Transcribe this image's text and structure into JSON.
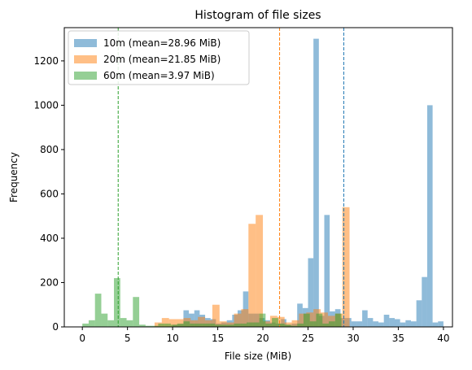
{
  "chart_data": {
    "type": "histogram",
    "title": "Histogram of file sizes",
    "xlabel": "File size (MiB)",
    "ylabel": "Frequency",
    "xlim": [
      -2,
      41
    ],
    "ylim": [
      0,
      1350
    ],
    "xticks": [
      0,
      5,
      10,
      15,
      20,
      25,
      30,
      35,
      40
    ],
    "yticks": [
      0,
      200,
      400,
      600,
      800,
      1000,
      1200
    ],
    "legend_position": "top-left",
    "grid": false,
    "series": [
      {
        "name": "10m (mean=28.96 MiB)",
        "color": "#1f77b4",
        "mean": 28.96,
        "bins": [
          [
            10.0,
            10.6,
            10
          ],
          [
            10.6,
            11.2,
            12
          ],
          [
            11.2,
            11.8,
            75
          ],
          [
            11.8,
            12.4,
            60
          ],
          [
            12.4,
            13.0,
            75
          ],
          [
            13.0,
            13.6,
            55
          ],
          [
            13.6,
            14.2,
            40
          ],
          [
            14.2,
            14.8,
            35
          ],
          [
            14.8,
            15.4,
            15
          ],
          [
            15.4,
            16.0,
            20
          ],
          [
            16.0,
            16.6,
            30
          ],
          [
            16.6,
            17.2,
            55
          ],
          [
            17.2,
            17.8,
            75
          ],
          [
            17.8,
            18.4,
            160
          ],
          [
            18.4,
            19.0,
            60
          ],
          [
            19.0,
            19.6,
            60
          ],
          [
            19.6,
            20.2,
            40
          ],
          [
            20.2,
            20.8,
            30
          ],
          [
            20.8,
            21.4,
            20
          ],
          [
            21.4,
            22.0,
            15
          ],
          [
            22.0,
            22.6,
            35
          ],
          [
            22.6,
            23.2,
            10
          ],
          [
            23.2,
            23.8,
            15
          ],
          [
            23.8,
            24.4,
            105
          ],
          [
            24.4,
            25.0,
            85
          ],
          [
            25.0,
            25.6,
            310
          ],
          [
            25.6,
            26.2,
            1300
          ],
          [
            26.2,
            26.8,
            50
          ],
          [
            26.8,
            27.4,
            505
          ],
          [
            27.4,
            28.0,
            70
          ],
          [
            28.0,
            28.6,
            80
          ],
          [
            28.6,
            29.2,
            40
          ],
          [
            29.2,
            29.8,
            40
          ],
          [
            29.8,
            30.4,
            25
          ],
          [
            30.4,
            31.0,
            25
          ],
          [
            31.0,
            31.6,
            75
          ],
          [
            31.6,
            32.2,
            40
          ],
          [
            32.2,
            32.8,
            25
          ],
          [
            32.8,
            33.4,
            20
          ],
          [
            33.4,
            34.0,
            55
          ],
          [
            34.0,
            34.6,
            40
          ],
          [
            34.6,
            35.2,
            35
          ],
          [
            35.2,
            35.8,
            20
          ],
          [
            35.8,
            36.4,
            30
          ],
          [
            36.4,
            37.0,
            25
          ],
          [
            37.0,
            37.6,
            120
          ],
          [
            37.6,
            38.2,
            225
          ],
          [
            38.2,
            38.8,
            1000
          ],
          [
            38.8,
            39.4,
            20
          ],
          [
            39.4,
            40.0,
            25
          ]
        ]
      },
      {
        "name": "20m (mean=21.85 MiB)",
        "color": "#ff7f0e",
        "mean": 21.85,
        "bins": [
          [
            8.0,
            8.8,
            20
          ],
          [
            8.8,
            9.6,
            40
          ],
          [
            9.6,
            10.4,
            35
          ],
          [
            10.4,
            11.2,
            35
          ],
          [
            11.2,
            12.0,
            40
          ],
          [
            12.0,
            12.8,
            30
          ],
          [
            12.8,
            13.6,
            45
          ],
          [
            13.6,
            14.4,
            30
          ],
          [
            14.4,
            15.2,
            100
          ],
          [
            15.2,
            16.0,
            25
          ],
          [
            16.0,
            16.8,
            20
          ],
          [
            16.8,
            17.6,
            60
          ],
          [
            17.6,
            18.4,
            80
          ],
          [
            18.4,
            19.2,
            465
          ],
          [
            19.2,
            20.0,
            505
          ],
          [
            20.0,
            20.8,
            25
          ],
          [
            20.8,
            21.6,
            50
          ],
          [
            21.6,
            22.4,
            45
          ],
          [
            22.4,
            23.2,
            20
          ],
          [
            23.2,
            24.0,
            30
          ],
          [
            24.0,
            24.8,
            60
          ],
          [
            24.8,
            25.6,
            65
          ],
          [
            25.6,
            26.4,
            80
          ],
          [
            26.4,
            27.2,
            65
          ],
          [
            27.2,
            28.0,
            50
          ],
          [
            28.0,
            28.8,
            60
          ],
          [
            28.8,
            29.6,
            540
          ]
        ]
      },
      {
        "name": "60m (mean=3.97 MiB)",
        "color": "#2ca02c",
        "mean": 3.97,
        "bins": [
          [
            0.0,
            0.7,
            15
          ],
          [
            0.7,
            1.4,
            30
          ],
          [
            1.4,
            2.1,
            150
          ],
          [
            2.1,
            2.8,
            60
          ],
          [
            2.8,
            3.5,
            30
          ],
          [
            3.5,
            4.2,
            220
          ],
          [
            4.2,
            4.9,
            40
          ],
          [
            4.9,
            5.6,
            30
          ],
          [
            5.6,
            6.3,
            135
          ],
          [
            6.3,
            7.0,
            10
          ],
          [
            7.0,
            7.7,
            5
          ],
          [
            7.7,
            8.4,
            5
          ],
          [
            8.4,
            9.1,
            15
          ],
          [
            9.1,
            9.8,
            15
          ],
          [
            9.8,
            10.5,
            10
          ],
          [
            10.5,
            11.2,
            15
          ],
          [
            11.2,
            11.9,
            25
          ],
          [
            11.9,
            12.6,
            15
          ],
          [
            12.6,
            13.3,
            15
          ],
          [
            13.3,
            14.0,
            15
          ],
          [
            14.0,
            14.7,
            15
          ],
          [
            14.7,
            15.4,
            10
          ],
          [
            15.4,
            16.1,
            10
          ],
          [
            16.1,
            16.8,
            10
          ],
          [
            16.8,
            17.5,
            15
          ],
          [
            17.5,
            18.2,
            15
          ],
          [
            18.2,
            18.9,
            20
          ],
          [
            18.9,
            19.6,
            20
          ],
          [
            19.6,
            20.3,
            60
          ],
          [
            20.3,
            21.0,
            15
          ],
          [
            21.0,
            21.7,
            40
          ],
          [
            21.7,
            22.4,
            15
          ],
          [
            22.4,
            23.1,
            10
          ],
          [
            23.1,
            23.8,
            5
          ],
          [
            23.8,
            24.5,
            15
          ],
          [
            24.5,
            25.2,
            60
          ],
          [
            25.2,
            25.9,
            25
          ],
          [
            25.9,
            26.6,
            60
          ],
          [
            26.6,
            27.3,
            15
          ],
          [
            27.3,
            28.0,
            25
          ],
          [
            28.0,
            28.7,
            60
          ]
        ]
      }
    ]
  }
}
